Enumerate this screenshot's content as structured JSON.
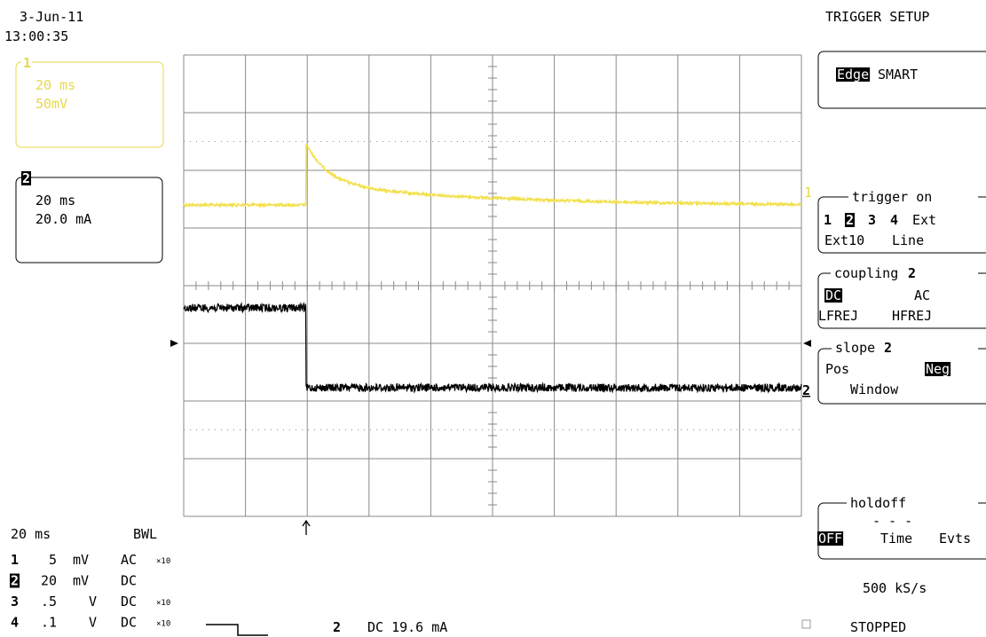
{
  "header": {
    "date": "3-Jun-11",
    "time": "13:00:35"
  },
  "channel_boxes": [
    {
      "label": "1",
      "timebase": "20 ms",
      "scale": "50mV"
    },
    {
      "label": "2",
      "timebase": "20 ms",
      "scale": "20.0 mA"
    }
  ],
  "trace_labels": [
    "1",
    "2"
  ],
  "menu": {
    "title": "TRIGGER SETUP",
    "type": [
      "Edge",
      "SMART"
    ],
    "trigger_on": {
      "header": "trigger on",
      "sources": [
        "1",
        "2",
        "3",
        "4",
        "Ext"
      ],
      "extra": [
        "Ext10",
        "Line"
      ]
    },
    "coupling": {
      "header": "coupling",
      "channel": "2",
      "options": [
        "DC",
        "AC",
        "LFREJ",
        "HFREJ"
      ]
    },
    "slope": {
      "header": "slope",
      "channel": "2",
      "options": [
        "Pos",
        "Neg",
        "Window"
      ]
    },
    "holdoff": {
      "header": "holdoff",
      "value": "- - -",
      "options": [
        "OFF",
        "Time",
        "Evts"
      ]
    }
  },
  "status": {
    "sample_rate": "500 kS/s",
    "state": "STOPPED"
  },
  "footer": {
    "timebase": "20 ms",
    "bandwidth": "BWL",
    "channels": [
      {
        "number": "1",
        "volts": "5",
        "unit": "mV",
        "coupling": "AC",
        "probe": "×10"
      },
      {
        "number": "2",
        "volts": "20",
        "unit": "mV",
        "coupling": "DC"
      },
      {
        "number": "3",
        "volts": ".5",
        "unit": "V",
        "coupling": "DC",
        "probe": "×10"
      },
      {
        "number": "4",
        "volts": ".1",
        "unit": "V",
        "coupling": "DC",
        "probe": "×10"
      }
    ],
    "trigger": {
      "channel": "2",
      "level": "DC 19.6 mA"
    }
  }
}
